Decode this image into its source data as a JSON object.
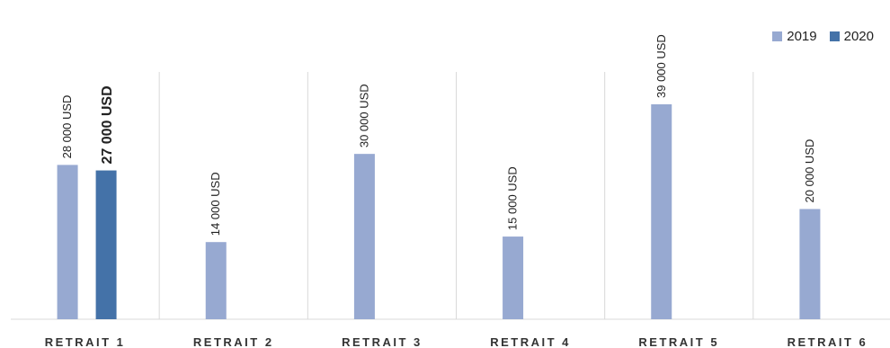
{
  "chart_data": {
    "type": "bar",
    "categories": [
      "RETRAIT 1",
      "RETRAIT 2",
      "RETRAIT 3",
      "RETRAIT 4",
      "RETRAIT 5",
      "RETRAIT 6"
    ],
    "series": [
      {
        "name": "2019",
        "color": "#97a9d1",
        "values": [
          28000,
          14000,
          30000,
          15000,
          39000,
          20000
        ],
        "labels": [
          "28 000 USD",
          "14 000 USD",
          "30 000 USD",
          "15 000 USD",
          "39 000 USD",
          "20 000 USD"
        ]
      },
      {
        "name": "2020",
        "color": "#4472a8",
        "values": [
          27000,
          null,
          null,
          null,
          null,
          null
        ],
        "labels": [
          "27 000 USD",
          "",
          "",
          "",
          "",
          ""
        ]
      }
    ],
    "ylim": [
      0,
      40000
    ],
    "grid": false,
    "legend_position": "top-right"
  }
}
